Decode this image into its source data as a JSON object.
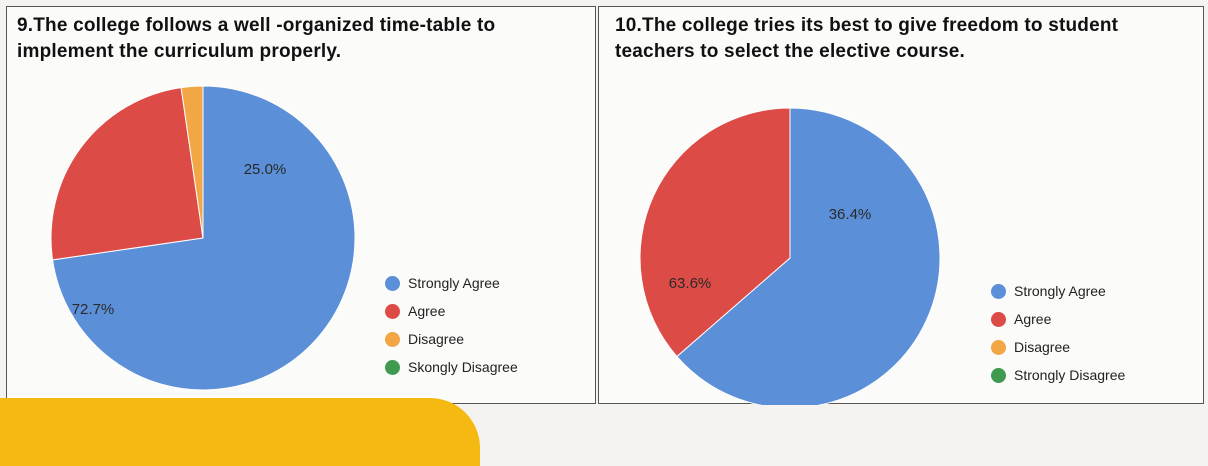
{
  "charts": [
    {
      "title": "9.The college follows a well -organized time-table to implement the curriculum properly.",
      "chart_data": {
        "type": "pie",
        "categories": [
          "Strongly Agree",
          "Agree",
          "Disagree",
          "Strongly Disagree"
        ],
        "values": [
          72.7,
          25.0,
          2.3,
          0
        ],
        "labels": [
          "72.7%",
          "25.0%",
          "",
          ""
        ],
        "colors": [
          "#5b8fd8",
          "#dd4b47",
          "#f2a644",
          "#3f9a4f"
        ],
        "legend": {
          "placement": "bottom-right",
          "entries": [
            "Strongly Agree",
            "Agree",
            "Disagree",
            "Skongly Disagree"
          ]
        }
      }
    },
    {
      "title": "10.The college tries its best to give freedom to student teachers to select the elective course.",
      "chart_data": {
        "type": "pie",
        "categories": [
          "Strongly Agree",
          "Agree",
          "Disagree",
          "Strongly Disagree"
        ],
        "values": [
          63.6,
          36.4,
          0,
          0
        ],
        "labels": [
          "63.6%",
          "36.4%",
          "",
          ""
        ],
        "colors": [
          "#5b8fd8",
          "#dd4b47",
          "#f2a644",
          "#3f9a4f"
        ],
        "legend": {
          "placement": "bottom-right",
          "entries": [
            "Strongly Agree",
            "Agree",
            "Disagree",
            "Strongly Disagree"
          ]
        }
      }
    }
  ]
}
